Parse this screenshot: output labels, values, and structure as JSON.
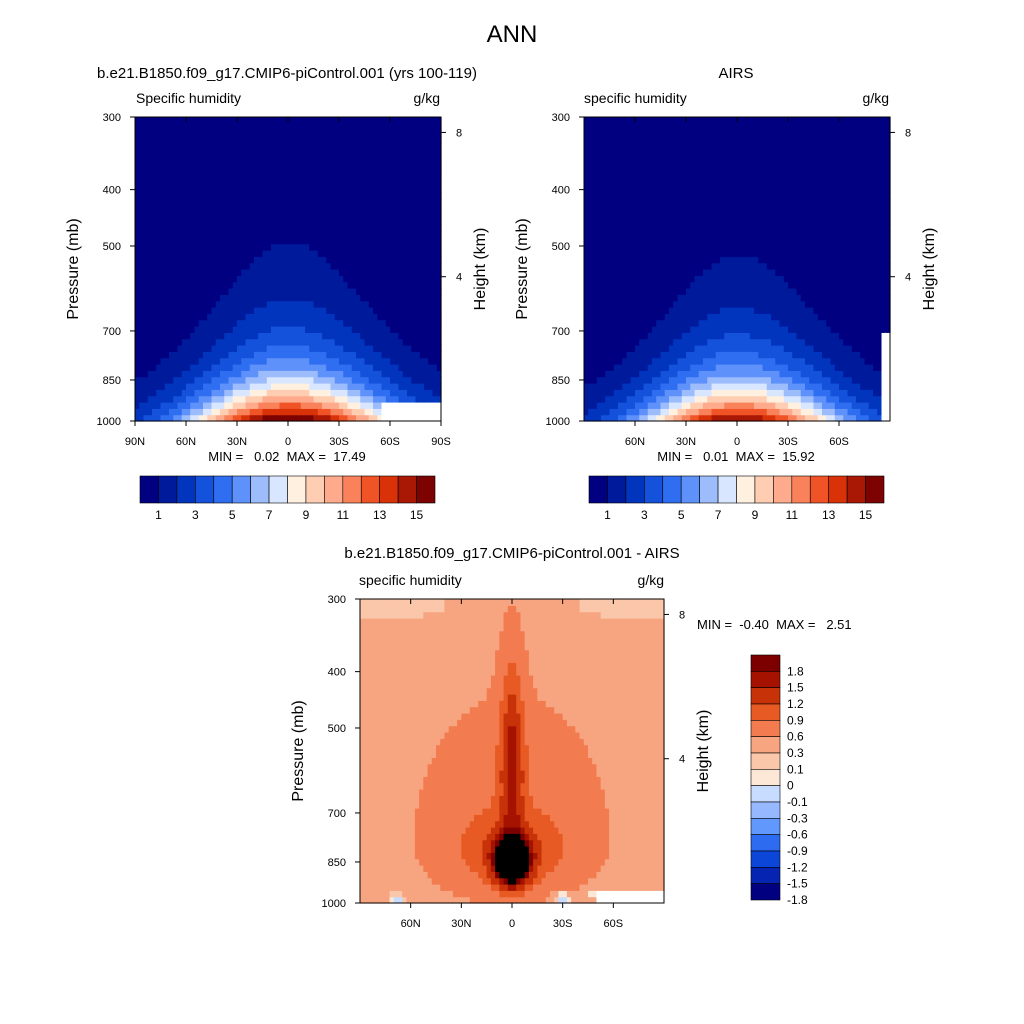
{
  "page": {
    "title": "ANN"
  },
  "colors": {
    "qScale": [
      "#000080",
      "#001a9c",
      "#0235bd",
      "#1452db",
      "#2f6ef0",
      "#5f91fa",
      "#9cbcfc",
      "#d9e6ff",
      "#fff0e0",
      "#ffcdb1",
      "#fdab8c",
      "#f9825b",
      "#ef5326",
      "#d93208",
      "#a91705",
      "#7c0302"
    ],
    "diffScale": [
      "#000080",
      "#0524b2",
      "#0c46d8",
      "#2d6cf0",
      "#6198fc",
      "#95b8ff",
      "#c8dcff",
      "#fde7d7",
      "#fbc7aa",
      "#f7a580",
      "#f27c50",
      "#e85a24",
      "#c83208",
      "#a51200",
      "#7c0000"
    ]
  },
  "panels": {
    "model": {
      "title": "b.e21.B1850.f09_g17.CMIP6-piControl.001 (yrs 100-119)",
      "field": "Specific humidity",
      "units": "g/kg",
      "ylabel": "Pressure (mb)",
      "ylabel2": "Height (km)",
      "stats": "MIN =   0.02  MAX =  17.49",
      "xticks": [
        "90N",
        "60N",
        "30N",
        "0",
        "30S",
        "60S",
        "90S"
      ]
    },
    "obs": {
      "title": "AIRS",
      "field": "specific humidity",
      "units": "g/kg",
      "ylabel": "Pressure (mb)",
      "ylabel2": "Height (km)",
      "stats": "MIN =   0.01  MAX =  15.92",
      "xticks": [
        "60N",
        "30N",
        "0",
        "30S",
        "60S"
      ]
    },
    "diff": {
      "title": "b.e21.B1850.f09_g17.CMIP6-piControl.001 - AIRS",
      "field": "specific humidity",
      "units": "g/kg",
      "ylabel": "Pressure (mb)",
      "ylabel2": "Height (km)",
      "stats": "MIN =  -0.40  MAX =   2.51",
      "xticks": [
        "60N",
        "30N",
        "0",
        "30S",
        "60S"
      ]
    }
  },
  "chart_data": [
    {
      "type": "heatmap",
      "title": "b.e21.B1850.f09_g17.CMIP6-piControl.001 (yrs 100-119)",
      "field": "Specific humidity",
      "units": "g/kg",
      "xlabel": "",
      "ylabel": "Pressure (mb)",
      "ylabel_right": "Height (km)",
      "xlim": [
        90,
        -90
      ],
      "ylim": [
        1000,
        300
      ],
      "pressure_ticks": [
        300,
        400,
        500,
        700,
        850,
        1000
      ],
      "height_ticks": [
        4,
        8
      ],
      "min": 0.02,
      "max": 17.49,
      "colorbar_ticks": [
        1,
        3,
        5,
        7,
        9,
        11,
        13,
        15
      ],
      "levels": [
        1,
        2,
        3,
        4,
        5,
        6,
        7,
        8,
        9,
        10,
        11,
        12,
        13,
        14,
        15
      ],
      "surface_q": 17.0,
      "humid_width_lat": 62,
      "scale_height_p": 180,
      "missing_surface": [
        {
          "lat_from": -55,
          "lat_to": -90,
          "p_from": 925
        }
      ]
    },
    {
      "type": "heatmap",
      "title": "AIRS",
      "field": "specific humidity",
      "units": "g/kg",
      "xlabel": "",
      "ylabel": "Pressure (mb)",
      "ylabel_right": "Height (km)",
      "xlim": [
        90,
        -90
      ],
      "ylim": [
        1000,
        300
      ],
      "pressure_ticks": [
        300,
        400,
        500,
        700,
        850,
        1000
      ],
      "height_ticks": [
        4,
        8
      ],
      "min": 0.01,
      "max": 15.92,
      "colorbar_ticks": [
        1,
        3,
        5,
        7,
        9,
        11,
        13,
        15
      ],
      "levels": [
        1,
        2,
        3,
        4,
        5,
        6,
        7,
        8,
        9,
        10,
        11,
        12,
        13,
        14,
        15
      ],
      "surface_q": 15.9,
      "humid_width_lat": 60,
      "scale_height_p": 175,
      "missing_surface": [
        {
          "lat_from": -85,
          "lat_to": -90,
          "p_from": 700
        }
      ]
    },
    {
      "type": "heatmap",
      "title": "b.e21.B1850.f09_g17.CMIP6-piControl.001 - AIRS",
      "field": "specific humidity",
      "units": "g/kg",
      "xlabel": "",
      "ylabel": "Pressure (mb)",
      "ylabel_right": "Height (km)",
      "xlim": [
        90,
        -90
      ],
      "ylim": [
        1000,
        300
      ],
      "pressure_ticks": [
        300,
        400,
        500,
        700,
        850,
        1000
      ],
      "height_ticks": [
        4,
        8
      ],
      "min": -0.4,
      "max": 2.51,
      "colorbar_ticks": [
        1.8,
        1.5,
        1.2,
        0.9,
        0.6,
        0.3,
        0.1,
        0,
        -0.1,
        -0.3,
        -0.6,
        -0.9,
        -1.2,
        -1.5,
        -1.8
      ],
      "levels": [
        -1.8,
        -1.5,
        -1.2,
        -0.9,
        -0.6,
        -0.3,
        -0.1,
        0,
        0.1,
        0.3,
        0.6,
        0.9,
        1.2,
        1.5,
        1.8
      ],
      "features": [
        {
          "name": "tropical_core",
          "lat": 0,
          "p": 850,
          "value": 2.5
        },
        {
          "name": "equatorial_column",
          "lat": 0,
          "p": 500,
          "value": 1.2
        },
        {
          "name": "background_upper",
          "value": 0.2
        },
        {
          "name": "northern_low_negative",
          "lat": 70,
          "p": 975,
          "value": -0.2
        },
        {
          "name": "southern_low_negative",
          "lat": -30,
          "p": 975,
          "value": -0.3
        }
      ],
      "missing_surface": [
        {
          "lat_from": -50,
          "lat_to": -90,
          "p_from": 940
        }
      ]
    }
  ]
}
